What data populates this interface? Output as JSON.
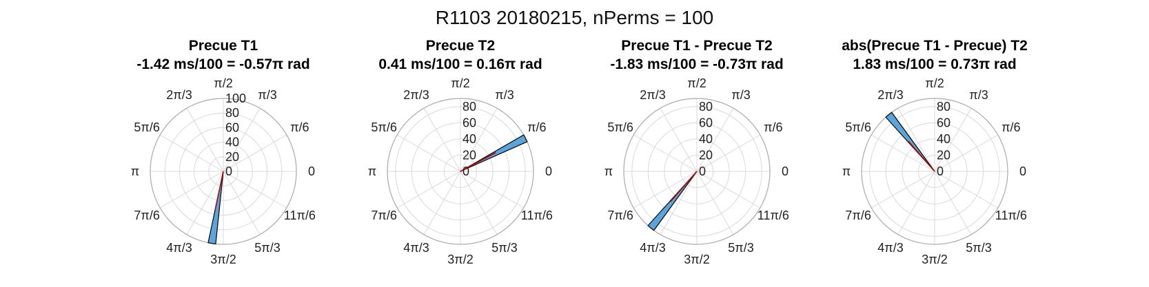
{
  "figure": {
    "suptitle": "R1103 20180215, nPerms = 100",
    "angle_labels": [
      "0",
      "π/6",
      "π/3",
      "π/2",
      "2π/3",
      "5π/6",
      "π",
      "7π/6",
      "4π/3",
      "3π/2",
      "5π/3",
      "11π/6"
    ]
  },
  "colors": {
    "bar_fill": "#5aa6dc",
    "bar_edge": "#000000",
    "mean_line": "#c00000",
    "grid": "#d9d9d9",
    "outer_ring": "#aaaaaa"
  },
  "chart_data": [
    {
      "type": "polar-histogram",
      "title": "Precue T1",
      "subtitle": "-1.42 ms/100 = -0.57π rad",
      "rlim": [
        0,
        100
      ],
      "r_ticks": [
        0,
        20,
        40,
        60,
        80,
        100
      ],
      "bars": [
        {
          "theta_start_deg": 258,
          "theta_end_deg": 264,
          "count": 100
        }
      ],
      "mean_angle_deg": 258
    },
    {
      "type": "polar-histogram",
      "title": "Precue T2",
      "subtitle": "0.41 ms/100 = 0.16π rad",
      "rlim": [
        0,
        90
      ],
      "r_ticks": [
        0,
        20,
        40,
        60,
        80
      ],
      "bars": [
        {
          "theta_start_deg": 24,
          "theta_end_deg": 30,
          "count": 90
        }
      ],
      "mean_angle_deg": 28
    },
    {
      "type": "polar-histogram",
      "title": "Precue T1 - Precue T2",
      "subtitle": "-1.83 ms/100 = -0.73π rad",
      "rlim": [
        0,
        90
      ],
      "r_ticks": [
        0,
        20,
        40,
        60,
        80
      ],
      "bars": [
        {
          "theta_start_deg": 228,
          "theta_end_deg": 234,
          "count": 90
        }
      ],
      "mean_angle_deg": 229
    },
    {
      "type": "polar-histogram",
      "title": "abs(Precue T1 - Precue) T2",
      "subtitle": "1.83 ms/100 = 0.73π rad",
      "rlim": [
        0,
        90
      ],
      "r_ticks": [
        0,
        20,
        40,
        60,
        80
      ],
      "bars": [
        {
          "theta_start_deg": 126,
          "theta_end_deg": 132,
          "count": 90
        }
      ],
      "mean_angle_deg": 131
    }
  ]
}
